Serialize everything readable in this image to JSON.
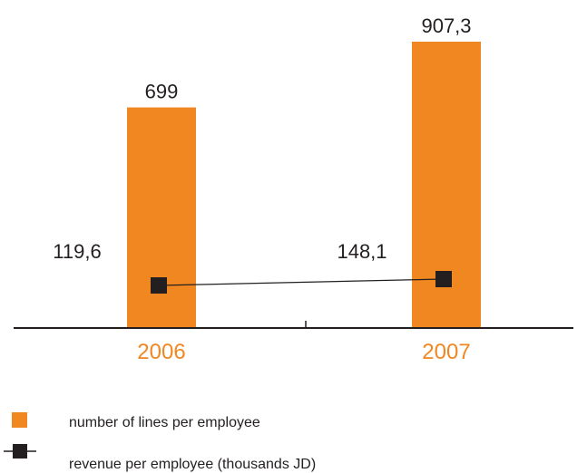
{
  "chart_data": {
    "type": "bar",
    "categories": [
      "2006",
      "2007"
    ],
    "series": [
      {
        "name": "number of lines per employee",
        "kind": "bar",
        "values": [
          699,
          907.3
        ],
        "labels": [
          "699",
          "907,3"
        ]
      },
      {
        "name": "revenue per employee (thousands JD)",
        "kind": "line",
        "values": [
          119.6,
          148.1
        ],
        "labels": [
          "119,6",
          "148,1"
        ]
      }
    ],
    "colors": {
      "bar": "#f18721",
      "category_label": "#f18721",
      "marker": "#231f20",
      "axis": "#231f20",
      "text": "#231f20"
    },
    "xlabel": "",
    "ylabel": "",
    "legend_position": "bottom-left",
    "grid": false
  }
}
